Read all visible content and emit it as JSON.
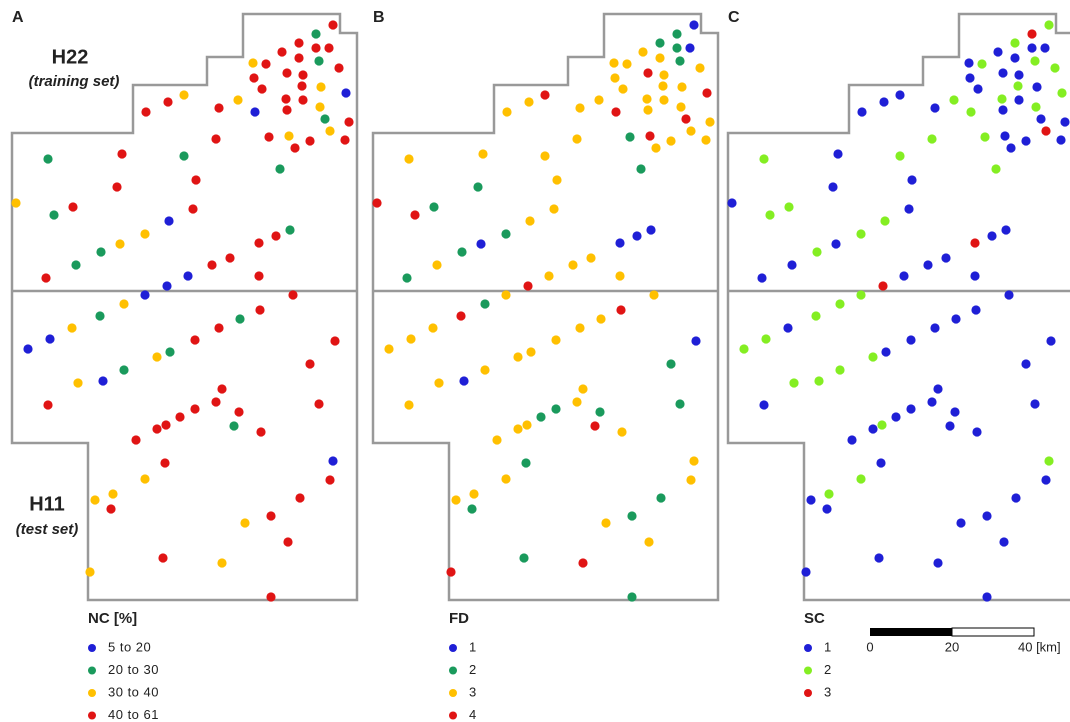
{
  "sets": {
    "training": {
      "name": "H22",
      "note": "(training set)"
    },
    "test": {
      "name": "H11",
      "note": "(test set)"
    }
  },
  "scale_bar": {
    "labels": [
      "0",
      "20",
      "40 [km]"
    ]
  },
  "panels": [
    {
      "label": "A",
      "legend": {
        "title": "NC [%]",
        "items": [
          {
            "label": "5  to  20",
            "color": "#1f1fd6"
          },
          {
            "label": "20  to  30",
            "color": "#1a9a5c"
          },
          {
            "label": "30  to  40",
            "color": "#ffc000"
          },
          {
            "label": "40  to  61",
            "color": "#e01414"
          }
        ]
      },
      "points": [
        3,
        1,
        3,
        3,
        3,
        3,
        3,
        1,
        2,
        3,
        3,
        3,
        3,
        3,
        2,
        3,
        2,
        3,
        2,
        3,
        0,
        3,
        3,
        3,
        0,
        3,
        3,
        2,
        1,
        3,
        2,
        2,
        3,
        3,
        3,
        3,
        3,
        1,
        3,
        1,
        1,
        3,
        3,
        2,
        3,
        1,
        3,
        0,
        2,
        1,
        3,
        3,
        2,
        1,
        1,
        3,
        3,
        3,
        0,
        3,
        0,
        0,
        3,
        2,
        3,
        1,
        1,
        2,
        3,
        0,
        3,
        3,
        0,
        1,
        2,
        3,
        1,
        2,
        0,
        3,
        3,
        3,
        3,
        3,
        3,
        3,
        3,
        1,
        3,
        3,
        3,
        0,
        3,
        3,
        2,
        2,
        2,
        3,
        3,
        3,
        2,
        3,
        3,
        2,
        2,
        3
      ]
    },
    {
      "label": "B",
      "legend": {
        "title": "FD",
        "items": [
          {
            "label": "1",
            "color": "#1f1fd6"
          },
          {
            "label": "2",
            "color": "#1a9a5c"
          },
          {
            "label": "3",
            "color": "#ffc000"
          },
          {
            "label": "4",
            "color": "#e01414"
          }
        ]
      },
      "points": [
        0,
        1,
        1,
        1,
        0,
        2,
        2,
        1,
        2,
        2,
        2,
        3,
        2,
        2,
        3,
        2,
        2,
        2,
        2,
        2,
        3,
        2,
        2,
        2,
        3,
        2,
        2,
        2,
        3,
        2,
        3,
        2,
        2,
        2,
        2,
        1,
        2,
        2,
        2,
        2,
        1,
        1,
        2,
        3,
        1,
        3,
        2,
        2,
        1,
        0,
        0,
        0,
        0,
        1,
        2,
        2,
        2,
        2,
        2,
        1,
        3,
        2,
        2,
        1,
        3,
        3,
        2,
        2,
        2,
        2,
        2,
        0,
        2,
        2,
        2,
        1,
        2,
        2,
        0,
        2,
        2,
        1,
        2,
        1,
        1,
        1,
        2,
        3,
        2,
        2,
        2,
        2,
        1,
        2,
        2,
        2,
        2,
        1,
        1,
        1,
        2,
        2,
        1,
        3,
        3,
        1
      ]
    },
    {
      "label": "C",
      "legend": {
        "title": "SC",
        "items": [
          {
            "label": "1",
            "color": "#1f1fd6"
          },
          {
            "label": "2",
            "color": "#84ee22"
          },
          {
            "label": "3",
            "color": "#e01414"
          }
        ]
      },
      "points": [
        1,
        2,
        1,
        0,
        0,
        0,
        0,
        1,
        0,
        1,
        1,
        0,
        0,
        0,
        0,
        0,
        1,
        1,
        0,
        0,
        1,
        1,
        0,
        0,
        1,
        0,
        0,
        1,
        0,
        0,
        0,
        2,
        0,
        0,
        0,
        1,
        1,
        1,
        0,
        1,
        1,
        0,
        0,
        0,
        1,
        1,
        0,
        1,
        1,
        0,
        0,
        2,
        0,
        1,
        0,
        0,
        0,
        0,
        0,
        0,
        2,
        1,
        0,
        1,
        0,
        1,
        0,
        0,
        0,
        1,
        0,
        0,
        1,
        0,
        1,
        0,
        1,
        1,
        1,
        0,
        0,
        0,
        0,
        0,
        0,
        0,
        1,
        0,
        0,
        0,
        0,
        1,
        0,
        0,
        1,
        1,
        0,
        0,
        0,
        0,
        0,
        0,
        0,
        0,
        0,
        0
      ]
    }
  ]
}
